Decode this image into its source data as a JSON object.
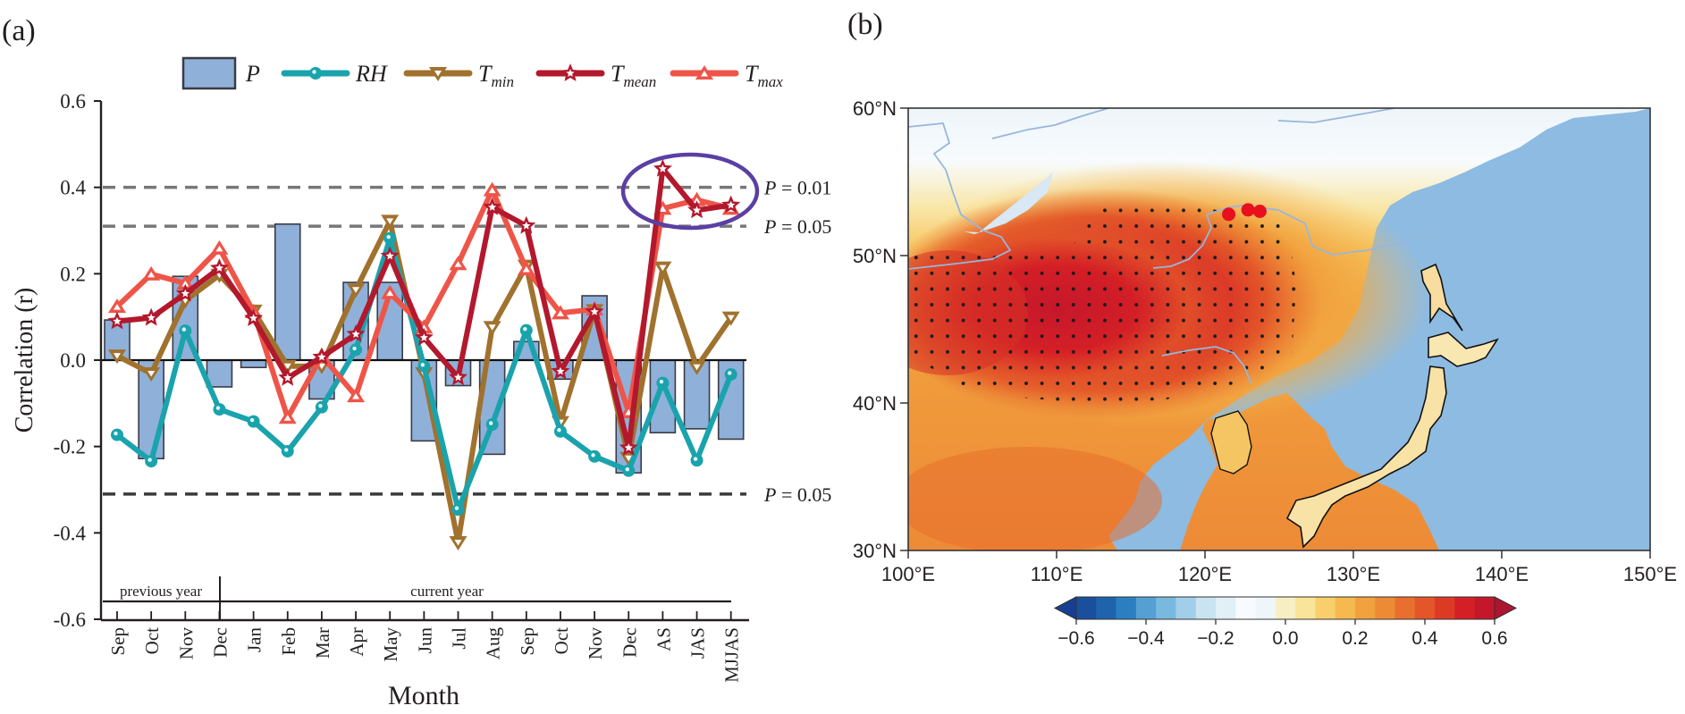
{
  "chart_data": [
    {
      "panel_label": "(a)",
      "type": "bar+line",
      "xlabel": "Month",
      "ylabel": "Correlation (r)",
      "ylim": [
        -0.6,
        0.6
      ],
      "yticks": [
        "0.6",
        "0.4",
        "0.2",
        "0.0",
        "-0.2",
        "-0.4",
        "-0.6"
      ],
      "ytick_values": [
        0.6,
        0.4,
        0.2,
        0.0,
        -0.2,
        -0.4,
        -0.6
      ],
      "categories": [
        "Sep",
        "Oct",
        "Nov",
        "Dec",
        "Jan",
        "Feb",
        "Mar",
        "Apr",
        "May",
        "Jun",
        "Jul",
        "Aug",
        "Sep",
        "Oct",
        "Nov",
        "Dec",
        "AS",
        "JAS",
        "MJJAS"
      ],
      "period_labels": [
        {
          "text": "previous year",
          "from": 0,
          "to": 3
        },
        {
          "text": "current year",
          "from": 3,
          "to": 18
        }
      ],
      "legend": {
        "placement": "top",
        "items": [
          {
            "key": "P",
            "label": "P",
            "sub": "",
            "kind": "bar"
          },
          {
            "key": "RH",
            "label": "RH",
            "sub": "",
            "kind": "line-circle"
          },
          {
            "key": "Tmin",
            "label": "T",
            "sub": "min",
            "kind": "line-down-triangle"
          },
          {
            "key": "Tmean",
            "label": "T",
            "sub": "mean",
            "kind": "line-star"
          },
          {
            "key": "Tmax",
            "label": "T",
            "sub": "max",
            "kind": "line-up-triangle"
          }
        ]
      },
      "significance_lines": [
        {
          "value": 0.4,
          "label": "P = 0.01",
          "color": "#777777"
        },
        {
          "value": 0.31,
          "label": "P = 0.05",
          "color": "#777777"
        },
        {
          "value": -0.31,
          "label": "P = 0.05",
          "color": "#3a3a3a"
        }
      ],
      "highlight": {
        "shape": "ellipse",
        "around": [
          "AS",
          "JAS",
          "MJJAS"
        ],
        "series": [
          "Tmean",
          "Tmax"
        ],
        "color": "#5b3fa3"
      },
      "bars": {
        "name": "P",
        "color": "#8fb0d9",
        "values": [
          0.093,
          -0.228,
          0.194,
          -0.062,
          -0.017,
          0.315,
          -0.09,
          0.18,
          0.18,
          -0.187,
          -0.059,
          -0.218,
          0.043,
          -0.044,
          0.149,
          -0.261,
          -0.168,
          -0.159,
          -0.183
        ]
      },
      "series": [
        {
          "name": "RH",
          "color": "#1aa3ad",
          "marker": "circle",
          "values": [
            -0.173,
            -0.234,
            0.068,
            -0.114,
            -0.142,
            -0.211,
            -0.109,
            0.024,
            0.282,
            -0.014,
            -0.346,
            -0.149,
            0.069,
            -0.165,
            -0.223,
            -0.256,
            -0.053,
            -0.232,
            -0.033
          ]
        },
        {
          "name": "Tmin",
          "color": "#a0722e",
          "marker": "down-triangle",
          "values": [
            0.01,
            -0.031,
            0.138,
            0.197,
            0.114,
            -0.014,
            -0.014,
            0.163,
            0.322,
            -0.031,
            -0.422,
            0.076,
            0.218,
            -0.144,
            0.115,
            -0.227,
            0.214,
            -0.016,
            0.098
          ]
        },
        {
          "name": "Tmean",
          "color": "#b3182d",
          "marker": "star",
          "values": [
            0.09,
            0.098,
            0.154,
            0.213,
            0.097,
            -0.041,
            0.007,
            0.06,
            0.241,
            0.052,
            -0.04,
            0.354,
            0.311,
            -0.026,
            0.112,
            -0.203,
            0.443,
            0.347,
            0.359
          ]
        },
        {
          "name": "Tmax",
          "color": "#ee5548",
          "marker": "up-triangle",
          "values": [
            0.124,
            0.199,
            0.178,
            0.259,
            0.112,
            -0.133,
            0.01,
            -0.083,
            0.156,
            0.076,
            0.223,
            0.394,
            0.211,
            0.109,
            0.118,
            -0.12,
            0.351,
            0.371,
            0.351
          ]
        }
      ]
    },
    {
      "panel_label": "(b)",
      "type": "heatmap",
      "title": "",
      "x_range_degE": [
        100,
        150
      ],
      "y_range_degN": [
        30,
        60
      ],
      "xticks": [
        "100°E",
        "110°E",
        "120°E",
        "130°E",
        "140°E",
        "150°E"
      ],
      "xtick_values": [
        100,
        110,
        120,
        130,
        140,
        150
      ],
      "yticks": [
        "60°N",
        "50°N",
        "40°N",
        "30°N"
      ],
      "ytick_values": [
        60,
        50,
        40,
        30
      ],
      "colorbar": {
        "range": [
          -0.6,
          0.6
        ],
        "ticks": [
          "−0.6",
          "−0.4",
          "−0.2",
          "0.0",
          "0.2",
          "0.4",
          "0.6"
        ],
        "tick_values": [
          -0.6,
          -0.4,
          -0.2,
          0.0,
          0.2,
          0.4,
          0.6
        ],
        "colors": [
          "#163f92",
          "#1a4f9e",
          "#1f63ad",
          "#2b7fc0",
          "#559fd2",
          "#79b8df",
          "#a1cfe9",
          "#c9e3f1",
          "#e1eff7",
          "#f7fbfd",
          "#eff6fa",
          "#f7efc3",
          "#f9e49a",
          "#f8cf6a",
          "#f5b94f",
          "#f1a23e",
          "#ed8a36",
          "#e86f2e",
          "#e35629",
          "#dd3a26",
          "#d41f26",
          "#c5172b",
          "#ae1530"
        ]
      },
      "ocean_color": "#8dbbe2",
      "field_description": "Correlation field, strongest positive values (>0.4, stippled as significant) over Mongolia / northern China ~103–125°E, 42–53°N; decreasing toward the northeast, near zero/slightly negative over Siberia north of ~55°N.",
      "significant_region": {
        "lon": [
          100,
          126
        ],
        "lat": [
          42,
          53
        ]
      },
      "sites": [
        {
          "lon": 121.6,
          "lat": 52.8
        },
        {
          "lon": 122.9,
          "lat": 53.1
        },
        {
          "lon": 123.7,
          "lat": 53.0
        }
      ]
    }
  ]
}
